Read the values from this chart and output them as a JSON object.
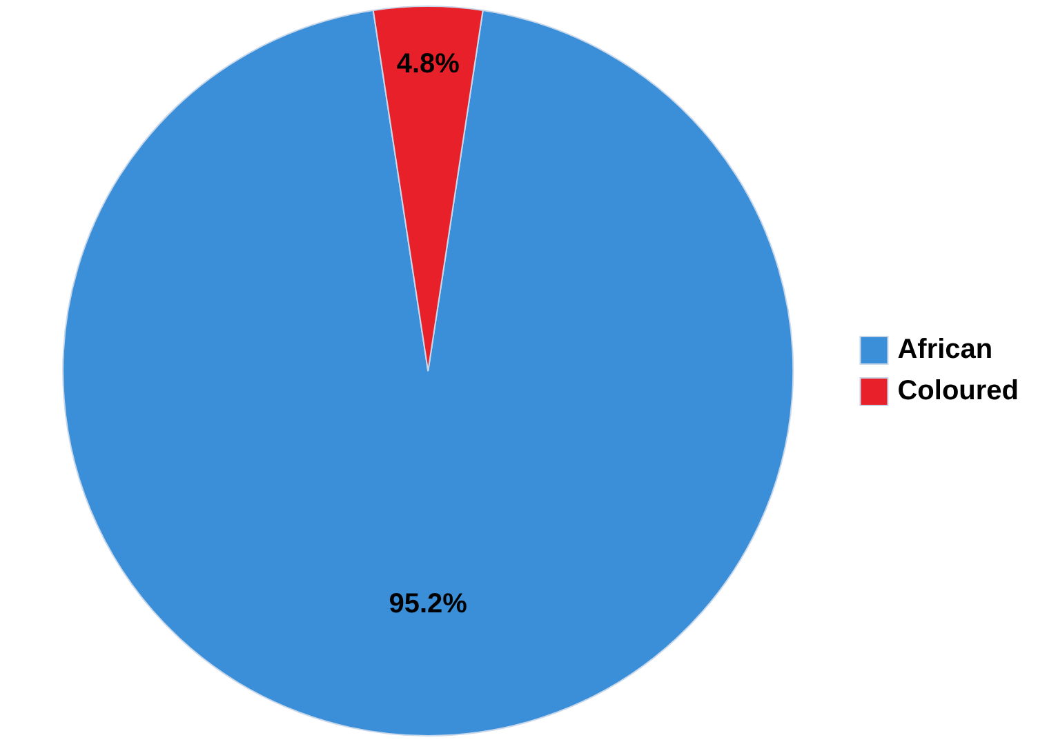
{
  "chart_data": {
    "type": "pie",
    "categories": [
      "African",
      "Coloured"
    ],
    "values": [
      95.2,
      4.8
    ],
    "colors": [
      "#3a8fd8",
      "#e8202a"
    ],
    "value_labels": [
      "95.2%",
      "4.8%"
    ],
    "legend": "right"
  }
}
